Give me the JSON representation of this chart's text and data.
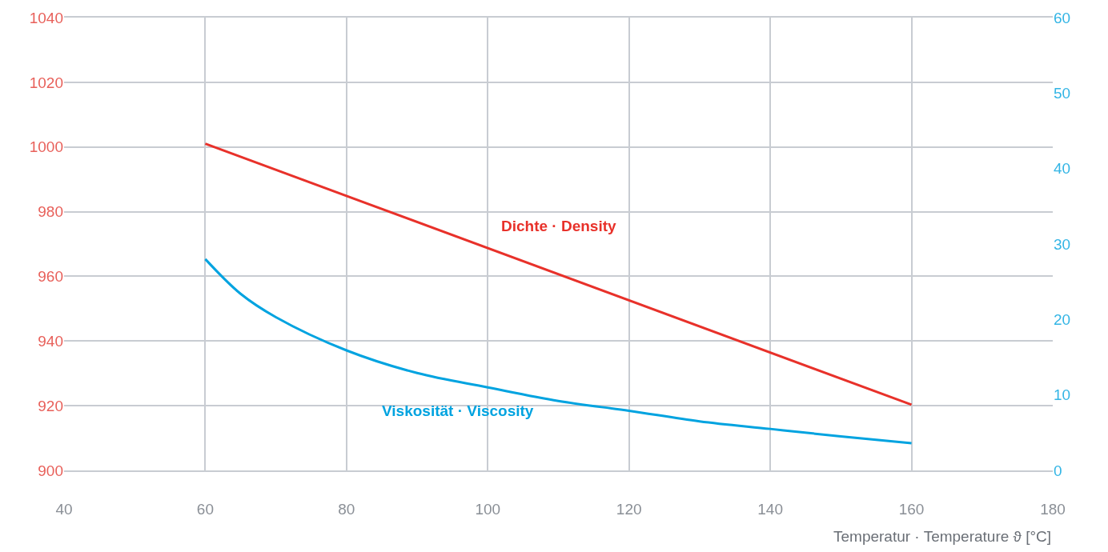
{
  "chart_data": {
    "type": "line",
    "xlabel": "Temperatur · Temperature ϑ [°C]",
    "xlim": [
      40,
      180
    ],
    "xticks": [
      40,
      60,
      80,
      100,
      120,
      140,
      160,
      180
    ],
    "ylim": [
      900,
      1040
    ],
    "yticks": [
      900,
      920,
      940,
      960,
      980,
      1000,
      1020,
      1040
    ],
    "y2lim": [
      0,
      60
    ],
    "y2ticks": [
      0,
      10,
      20,
      30,
      40,
      50,
      60
    ],
    "grid": true,
    "legend": false,
    "marker": "none",
    "line_style": "solid",
    "series": [
      {
        "name": "Dichte · Density",
        "color": "#e8312a",
        "x": [
          60,
          160
        ],
        "values": [
          1001,
          920.3
        ]
      },
      {
        "name": "Viskosität · Viscosity",
        "color": "#00a3e0",
        "axis": "y2",
        "x": [
          60,
          65,
          70,
          80,
          90,
          100,
          110,
          120,
          130,
          140,
          150,
          160
        ],
        "values": [
          28,
          23.4,
          20.3,
          15.9,
          12.9,
          11.0,
          9.2,
          7.9,
          6.5,
          5.5,
          4.5,
          3.6
        ]
      }
    ]
  }
}
